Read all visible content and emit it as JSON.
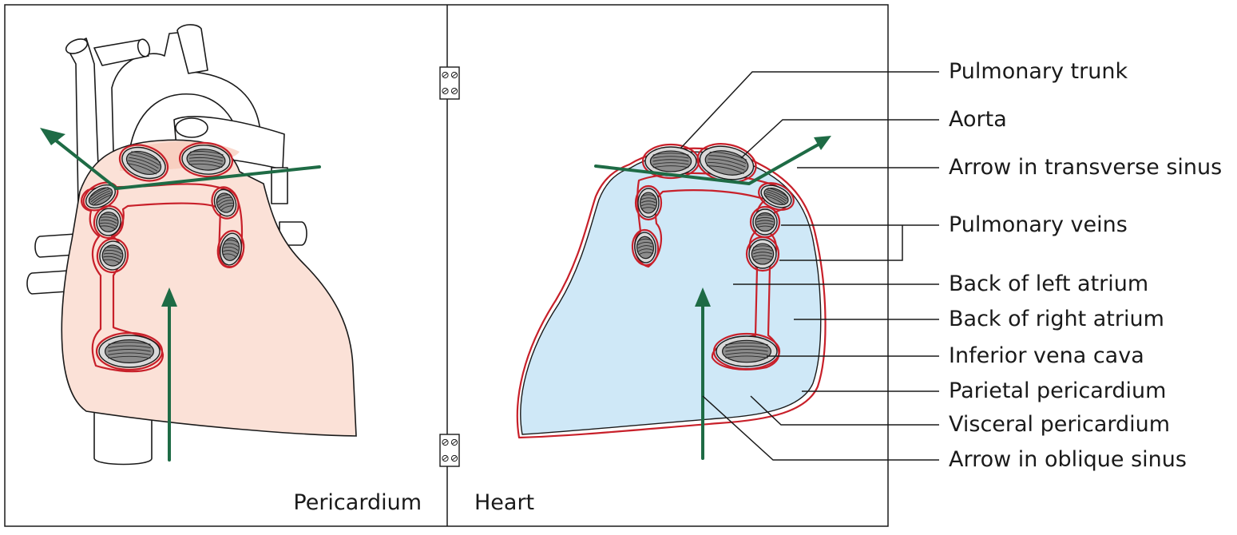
{
  "panels": {
    "left_label": "Pericardium",
    "right_label": "Heart"
  },
  "labels": [
    "Pulmonary trunk",
    "Aorta",
    "Arrow in transverse sinus",
    "Pulmonary veins",
    "Back of left atrium",
    "Back of right atrium",
    "Inferior vena cava",
    "Parietal pericardium",
    "Visceral pericardium",
    "Arrow in oblique sinus"
  ],
  "colors": {
    "pericardium_fill": "#fbe1d7",
    "heart_fill": "#cfe8f7",
    "reflection_line": "#c8202a",
    "arrow": "#1e6b45",
    "vessel_core": "#8c8c8c",
    "vessel_ring": "#d9d9d9"
  }
}
